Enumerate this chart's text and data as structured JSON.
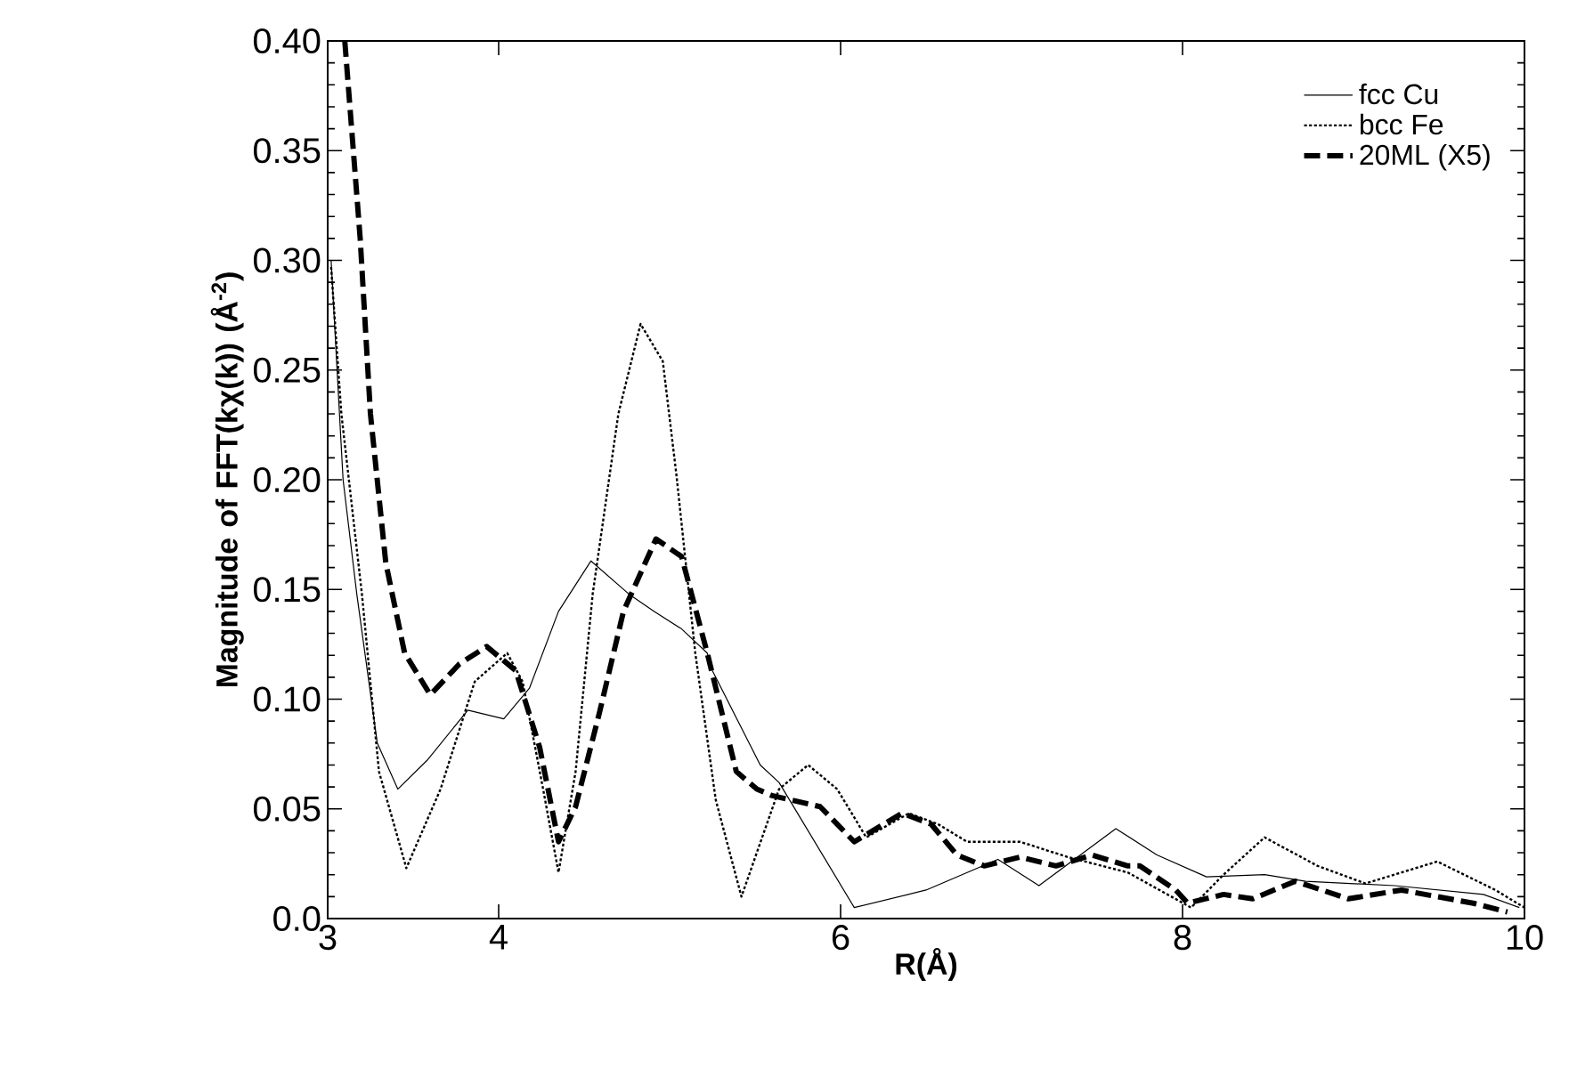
{
  "chart_data": {
    "type": "line",
    "xlabel": "R(Å)",
    "ylabel": "Magnitude of FFT(kχ(k)) (Å$^{-2}$)",
    "xlim": [
      3,
      10
    ],
    "ylim": [
      0,
      0.4
    ],
    "xticks": [
      3,
      4,
      6,
      8,
      10
    ],
    "yticks": [
      {
        "value": 0,
        "label": "0.0"
      },
      {
        "value": 0.05,
        "label": "0.05"
      },
      {
        "value": 0.1,
        "label": "0.10"
      },
      {
        "value": 0.15,
        "label": "0.15"
      },
      {
        "value": 0.2,
        "label": "0.20"
      },
      {
        "value": 0.25,
        "label": "0.25"
      },
      {
        "value": 0.3,
        "label": "0.30"
      },
      {
        "value": 0.35,
        "label": "0.35"
      },
      {
        "value": 0.4,
        "label": "0.40"
      }
    ],
    "grid": false,
    "legend": "top right",
    "marker": "none",
    "series": [
      {
        "name": "fcc Cu",
        "color": "#000000",
        "line_style": "solid",
        "x": [
          3.02,
          3.09,
          3.17,
          3.29,
          3.41,
          3.58,
          3.82,
          4.03,
          4.18,
          4.35,
          4.54,
          4.76,
          4.91,
          5.07,
          5.22,
          5.25,
          5.53,
          5.64,
          6.08,
          6.5,
          6.92,
          7.16,
          7.61,
          7.85,
          8.14,
          8.48,
          8.72,
          9.24,
          9.76,
          9.97
        ],
        "values": [
          0.3,
          0.2,
          0.148,
          0.08,
          0.059,
          0.072,
          0.095,
          0.091,
          0.105,
          0.14,
          0.163,
          0.148,
          0.14,
          0.132,
          0.121,
          0.113,
          0.07,
          0.062,
          0.005,
          0.013,
          0.027,
          0.015,
          0.041,
          0.029,
          0.019,
          0.02,
          0.017,
          0.015,
          0.011,
          0.005
        ]
      },
      {
        "name": "bcc Fe",
        "color": "#000000",
        "line_style": "dotted",
        "x": [
          3.02,
          3.08,
          3.2,
          3.3,
          3.46,
          3.66,
          3.86,
          4.05,
          4.14,
          4.26,
          4.35,
          4.45,
          4.55,
          4.7,
          4.83,
          4.96,
          5.04,
          5.15,
          5.27,
          5.42,
          5.64,
          5.81,
          5.98,
          6.15,
          6.4,
          6.57,
          6.74,
          7.05,
          7.33,
          7.68,
          8.05,
          8.24,
          8.48,
          8.79,
          9.07,
          9.49,
          9.83,
          10.0
        ],
        "values": [
          0.297,
          0.23,
          0.148,
          0.067,
          0.023,
          0.059,
          0.108,
          0.121,
          0.108,
          0.059,
          0.021,
          0.067,
          0.148,
          0.23,
          0.271,
          0.254,
          0.202,
          0.121,
          0.054,
          0.01,
          0.059,
          0.07,
          0.059,
          0.037,
          0.048,
          0.043,
          0.035,
          0.035,
          0.028,
          0.021,
          0.005,
          0.02,
          0.037,
          0.024,
          0.016,
          0.026,
          0.013,
          0.005
        ]
      },
      {
        "name": "20ML (X5)",
        "color": "#000000",
        "line_style": "dashed",
        "x": [
          3.1,
          3.19,
          3.25,
          3.34,
          3.45,
          3.6,
          3.77,
          3.93,
          4.1,
          4.24,
          4.35,
          4.45,
          4.59,
          4.73,
          4.92,
          5.07,
          5.22,
          5.39,
          5.51,
          5.6,
          5.88,
          6.08,
          6.36,
          6.53,
          6.68,
          6.84,
          7.05,
          7.26,
          7.47,
          7.68,
          7.75,
          7.96,
          8.03,
          8.24,
          8.41,
          8.66,
          8.97,
          9.28,
          9.7,
          9.9
        ],
        "values": [
          0.4,
          0.31,
          0.23,
          0.162,
          0.121,
          0.102,
          0.116,
          0.124,
          0.113,
          0.078,
          0.035,
          0.051,
          0.094,
          0.14,
          0.173,
          0.165,
          0.121,
          0.067,
          0.059,
          0.056,
          0.051,
          0.035,
          0.048,
          0.043,
          0.029,
          0.024,
          0.028,
          0.024,
          0.029,
          0.024,
          0.024,
          0.013,
          0.007,
          0.011,
          0.009,
          0.017,
          0.009,
          0.013,
          0.007,
          0.003
        ]
      }
    ]
  }
}
